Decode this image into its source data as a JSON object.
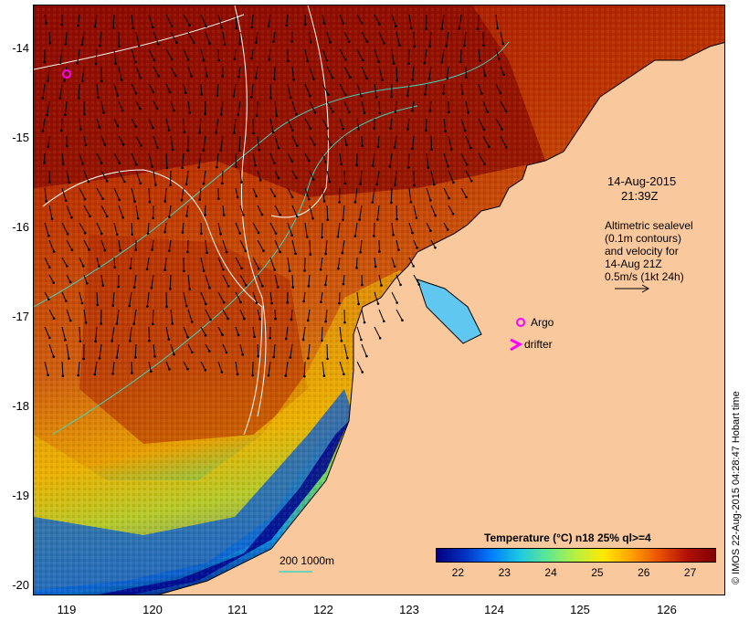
{
  "map": {
    "lat_ticks": [
      "-14",
      "-15",
      "-16",
      "-17",
      "-18",
      "-19",
      "-20"
    ],
    "lon_ticks": [
      "119",
      "120",
      "121",
      "122",
      "123",
      "124",
      "125",
      "126"
    ],
    "lat_range": [
      -20.1,
      -13.5
    ],
    "lon_range": [
      118.65,
      126.7
    ],
    "land_color": "#f9c89c",
    "contour_colors": {
      "sealevel": "#ffffff",
      "bathymetry": "#3fd3c0",
      "coast": "#000000"
    }
  },
  "annotations": {
    "date": "14-Aug-2015",
    "time": "21:39Z",
    "altimetry_lines": [
      "Altimetric sealevel",
      "(0.1m contours)",
      "and velocity for",
      "14-Aug 21Z",
      "0.5m/s (1kt 24h)"
    ],
    "argo_label": "Argo",
    "drifter_label": "drifter",
    "argo_icon": "magenta-circle-icon",
    "drifter_icon": "magenta-chevron-icon",
    "depth_legend": "200  1000m"
  },
  "colorbar": {
    "title": "Temperature (°C) n18 25% ql>=4",
    "ticks": [
      "22",
      "23",
      "24",
      "25",
      "26",
      "27"
    ],
    "min": 21.5,
    "max": 27.5,
    "colors": [
      "#00007f",
      "#0030c0",
      "#0080ff",
      "#20c8e0",
      "#60e890",
      "#b8f040",
      "#ffe800",
      "#ffa000",
      "#e85000",
      "#b01000",
      "#800000"
    ]
  },
  "footer": {
    "stamp": "© IMOS 22-Aug-2015 04:28:47 Hobart time"
  }
}
